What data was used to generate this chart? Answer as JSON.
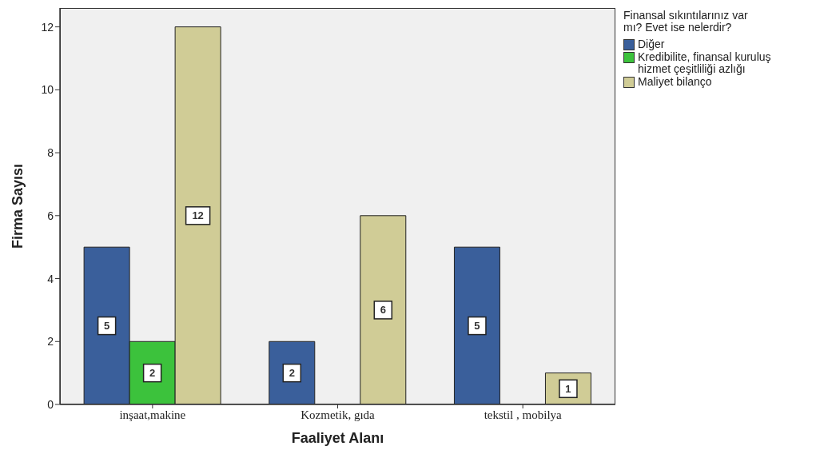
{
  "chart_data": {
    "type": "bar",
    "xlabel": "Faaliyet Alanı",
    "ylabel": "Firma Sayısı",
    "legend_title": "Finansal sıkıntılarınız var mı? Evet ise nelerdir?",
    "categories": [
      "inşaat,makine",
      "Kozmetik, gıda",
      "tekstil , mobilya"
    ],
    "series": [
      {
        "name": "Diğer",
        "color": "#3a5f9b",
        "values": [
          5,
          2,
          5
        ]
      },
      {
        "name": "Kredibilite, finansal kuruluş hizmet çeşitliliği azlığı",
        "color": "#3cc23c",
        "values": [
          2,
          null,
          null
        ]
      },
      {
        "name": "Maliyet bilanço",
        "color": "#d0cc96",
        "values": [
          12,
          6,
          1
        ]
      }
    ],
    "ylim": [
      0,
      12.6
    ],
    "yticks": [
      0,
      2,
      4,
      6,
      8,
      10,
      12
    ],
    "grid": false,
    "legend": "top right",
    "data_labels": true
  }
}
